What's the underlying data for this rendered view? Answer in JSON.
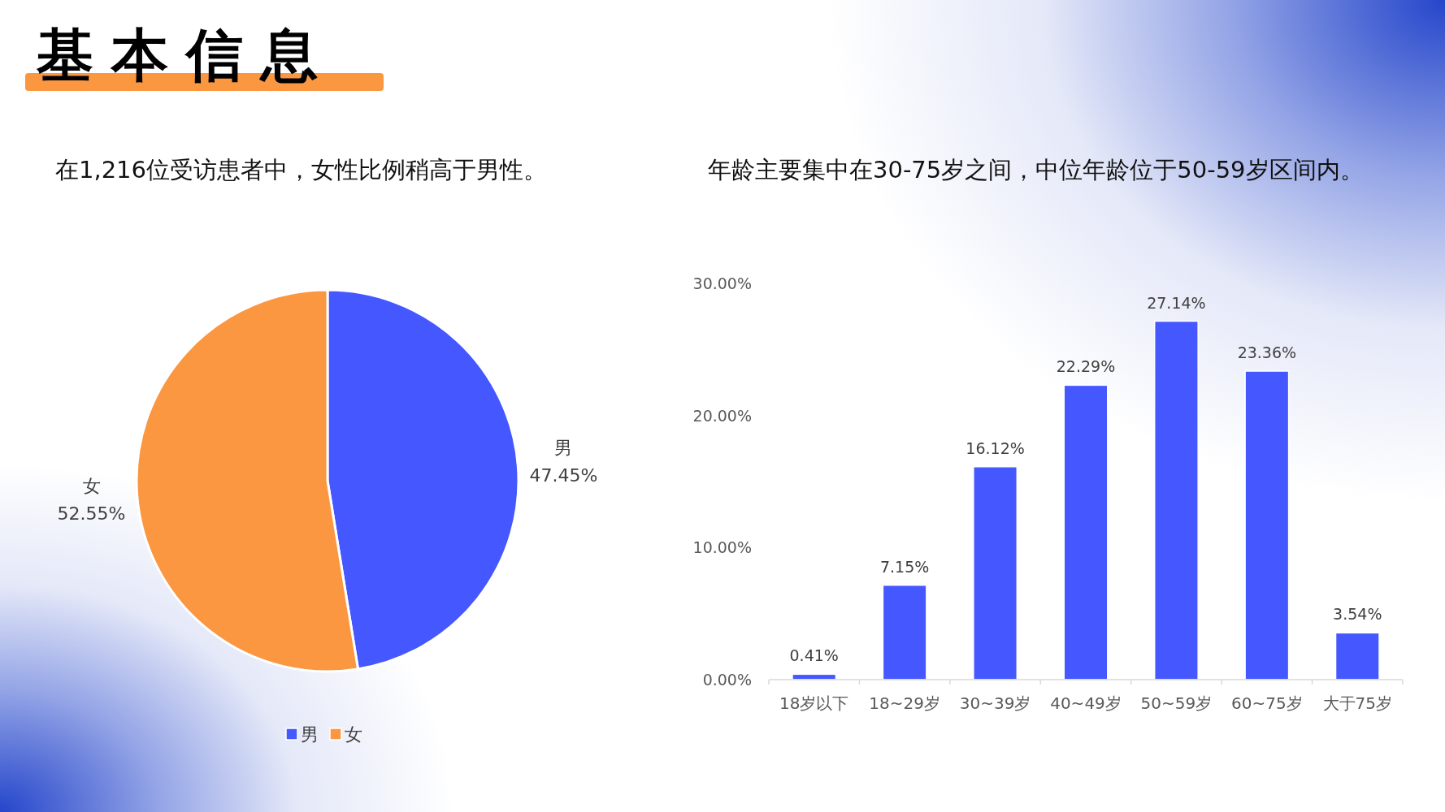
{
  "chart_data": [
    {
      "type": "other",
      "title": "基本信息"
    },
    {
      "type": "pie",
      "title": "在1,216位受访患者中，女性比例稍高于男性。",
      "categories": [
        "男",
        "女"
      ],
      "values": [
        47.45,
        52.55
      ],
      "colors": [
        "#4557ff",
        "#fb9641"
      ],
      "value_labels": [
        "47.45%",
        "52.55%"
      ],
      "legend": "bottom"
    },
    {
      "type": "bar",
      "title": "年龄主要集中在30-75岁之间，中位年龄位于50-59岁区间内。",
      "categories": [
        "18岁以下",
        "18~29岁",
        "30~39岁",
        "40~49岁",
        "50~59岁",
        "60~75岁",
        "大于75岁"
      ],
      "values": [
        0.41,
        7.15,
        16.12,
        22.29,
        27.14,
        23.36,
        3.54
      ],
      "color": "#4557ff",
      "value_labels": [
        "0.41%",
        "7.15%",
        "16.12%",
        "22.29%",
        "27.14%",
        "23.36%",
        "3.54%"
      ],
      "ylim": [
        0,
        30
      ],
      "yticks": [
        {
          "value": 0,
          "label": "0.00%"
        },
        {
          "value": 10,
          "label": "10.00%"
        },
        {
          "value": 20,
          "label": "20.00%"
        },
        {
          "value": 30,
          "label": "30.00%"
        }
      ]
    }
  ]
}
